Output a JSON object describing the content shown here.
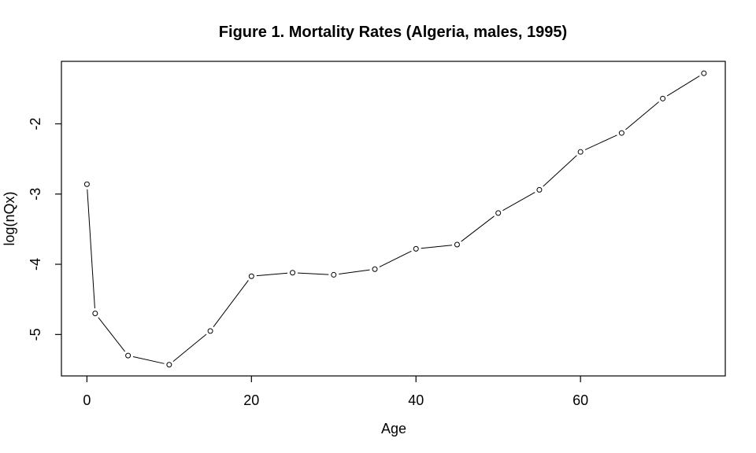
{
  "figure": {
    "background_color": "#ffffff",
    "foreground_color": "#000000"
  },
  "chart_data": {
    "type": "line",
    "plot_style": "points-and-lines",
    "marker": "open-circle",
    "title": "Figure 1. Mortality Rates (Algeria, males, 1995)",
    "xlabel": "Age",
    "ylabel": "log(nQx)",
    "x": [
      0,
      1,
      5,
      10,
      15,
      20,
      25,
      30,
      35,
      40,
      45,
      50,
      55,
      60,
      65,
      70,
      75
    ],
    "y": [
      -2.86,
      -4.7,
      -5.3,
      -5.43,
      -4.95,
      -4.17,
      -4.12,
      -4.15,
      -4.07,
      -3.78,
      -3.72,
      -3.27,
      -2.94,
      -2.4,
      -2.13,
      -1.64,
      -1.28
    ],
    "x_ticks": [
      0,
      20,
      40,
      60
    ],
    "y_ticks": [
      -2,
      -3,
      -4,
      -5
    ],
    "xlim": [
      -3.1,
      77.6
    ],
    "ylim": [
      -5.59,
      -1.11
    ],
    "grid": false,
    "legend": null,
    "colors": {
      "line": "#000000",
      "marker_stroke": "#000000",
      "marker_fill": "#ffffff",
      "box": "#000000",
      "text": "#000000",
      "background": "#ffffff"
    }
  }
}
